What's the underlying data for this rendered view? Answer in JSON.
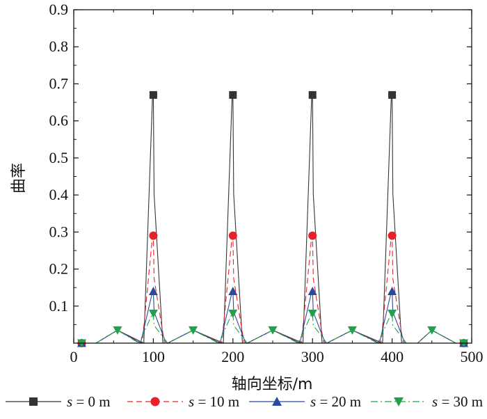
{
  "chart_data": {
    "type": "line",
    "title": "",
    "xlabel": "轴向坐标/m",
    "ylabel": "曲率",
    "xlim": [
      0,
      500
    ],
    "ylim": [
      0,
      0.9
    ],
    "xticks": [
      "0",
      "100",
      "200",
      "300",
      "400",
      "500"
    ],
    "xtick_values": [
      0,
      100,
      200,
      300,
      400,
      500
    ],
    "yticks": [
      "0.1",
      "0.2",
      "0.3",
      "0.4",
      "0.5",
      "0.6",
      "0.7",
      "0.8",
      "0.9"
    ],
    "ytick_values": [
      0.1,
      0.2,
      0.3,
      0.4,
      0.5,
      0.6,
      0.7,
      0.8,
      0.9
    ],
    "grid": false,
    "legend_position": "bottom",
    "series": [
      {
        "name": "s = 0 m",
        "legend_var": "s",
        "legend_rest": " = 0 m",
        "color": "#333333",
        "marker": "square",
        "dash": "solid",
        "x": [
          10,
          100,
          200,
          300,
          400,
          490
        ],
        "y": [
          0.0,
          0.67,
          0.67,
          0.67,
          0.67,
          0.0
        ]
      },
      {
        "name": "s = 10 m",
        "legend_var": "s",
        "legend_rest": " = 10 m",
        "color": "#e8202a",
        "marker": "circle",
        "dash": "dash",
        "x": [
          10,
          100,
          200,
          300,
          400,
          490
        ],
        "y": [
          0.0,
          0.29,
          0.29,
          0.29,
          0.29,
          0.0
        ]
      },
      {
        "name": "s = 20 m",
        "legend_var": "s",
        "legend_rest": " = 20 m",
        "color": "#2c4a9c",
        "marker": "triangle-up",
        "dash": "solid",
        "x": [
          10,
          100,
          200,
          300,
          400,
          490
        ],
        "y": [
          0.0,
          0.14,
          0.14,
          0.14,
          0.14,
          0.0
        ]
      },
      {
        "name": "s = 30 m",
        "legend_var": "s",
        "legend_rest": " = 30 m",
        "color": "#22a04b",
        "marker": "triangle-down",
        "dash": "dashdot",
        "x": [
          10,
          55,
          100,
          150,
          200,
          250,
          300,
          350,
          400,
          450,
          490
        ],
        "y": [
          0.0,
          0.035,
          0.08,
          0.035,
          0.08,
          0.035,
          0.08,
          0.035,
          0.08,
          0.035,
          0.0
        ]
      }
    ]
  }
}
